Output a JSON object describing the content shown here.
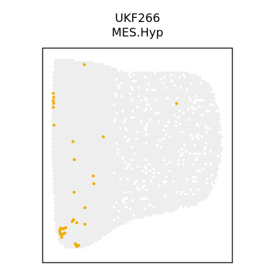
{
  "chart_data": {
    "type": "scatter",
    "title": "UKF266",
    "subtitle": "MES.Hyp",
    "xlabel": "",
    "ylabel": "",
    "xlim": [
      0,
      100
    ],
    "ylim": [
      0,
      100
    ],
    "grid": false,
    "axes_ticks": false,
    "background_color": "#ececec",
    "highlight_color": "#f0ae00",
    "frame_color": "#000000",
    "series": [
      {
        "values": [
          [
            22,
            92.3
          ],
          [
            70.6,
            74.2
          ],
          [
            32,
            58.7
          ],
          [
            16,
            56.4
          ],
          [
            5.6,
            72.4
          ],
          [
            5.8,
            74.3
          ],
          [
            5.6,
            75.5
          ],
          [
            5.8,
            77.1
          ],
          [
            5.6,
            78.9
          ],
          [
            6.0,
            64.1
          ],
          [
            16.7,
            48.0
          ],
          [
            26.7,
            40.4
          ],
          [
            27.0,
            36.8
          ],
          [
            16.6,
            32.8
          ],
          [
            22.3,
            25.6
          ],
          [
            16.3,
            20.0
          ],
          [
            18.0,
            18.6
          ],
          [
            15.6,
            19.2
          ],
          [
            22.3,
            17.9
          ],
          [
            9.5,
            16.1
          ],
          [
            10.5,
            15.7
          ],
          [
            11.4,
            16.0
          ],
          [
            12.2,
            16.3
          ],
          [
            9.0,
            15.0
          ],
          [
            9.2,
            14.0
          ],
          [
            9.6,
            13.0
          ],
          [
            10.8,
            13.3
          ],
          [
            11.7,
            13.8
          ],
          [
            10.1,
            11.8
          ],
          [
            17.2,
            8.8
          ],
          [
            18.0,
            7.5
          ],
          [
            17.6,
            8.3
          ],
          [
            19.0,
            8.0
          ]
        ]
      }
    ]
  }
}
